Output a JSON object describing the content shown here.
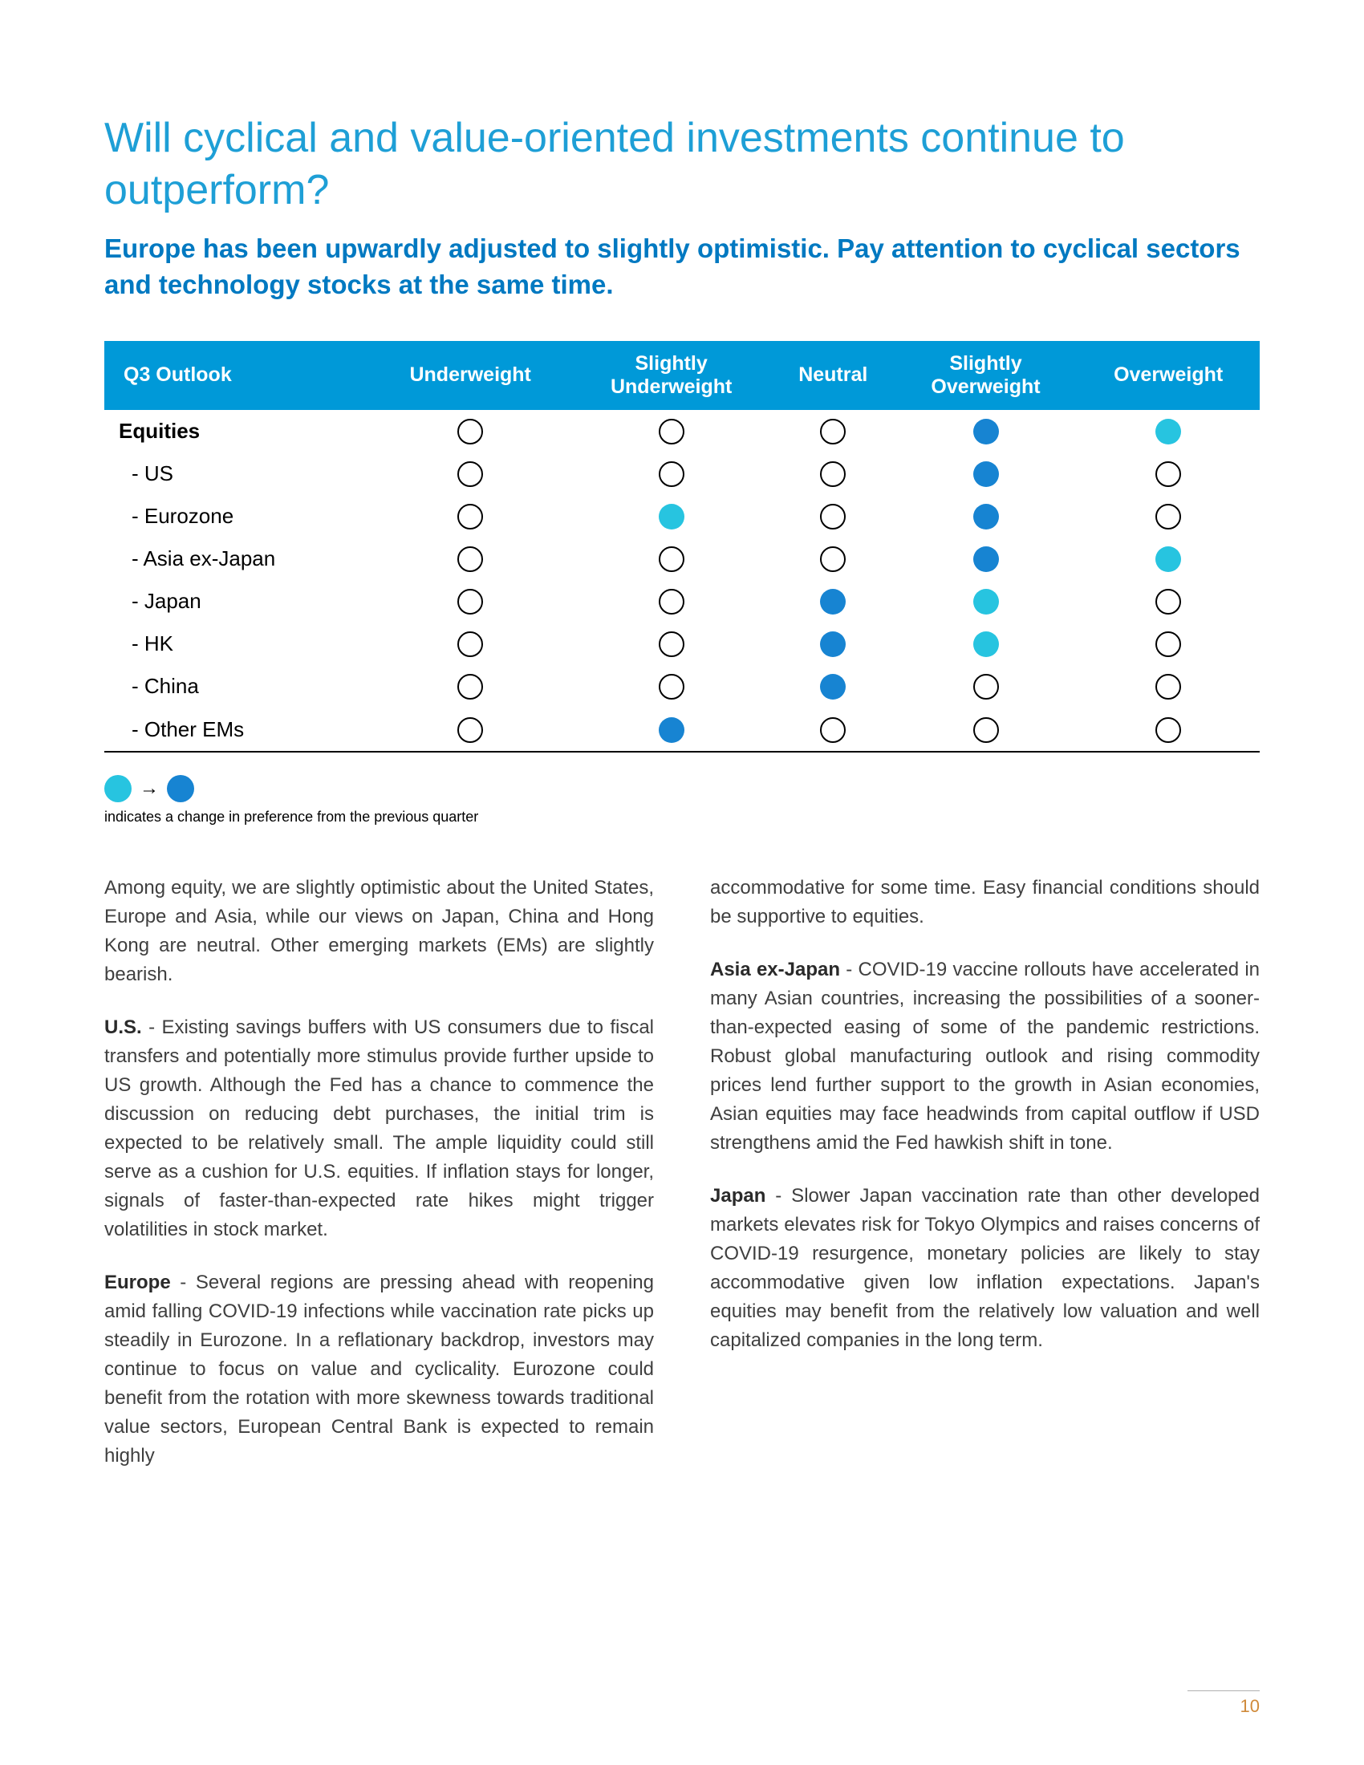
{
  "colors": {
    "title": "#1e9fd6",
    "subtitle": "#0079c1",
    "header_bg": "#0099d8",
    "header_text": "#ffffff",
    "dot_blue": "#1784d2",
    "dot_cyan": "#27c4e0",
    "body_text": "#3f3f3f",
    "page_num": "#d08a3a"
  },
  "title": "Will cyclical and value-oriented investments continue to outperform?",
  "subtitle": "Europe has been upwardly adjusted to slightly optimistic. Pay attention to cyclical sectors and technology stocks at the same time.",
  "table": {
    "headers": [
      "Q3 Outlook",
      "Underweight",
      "Slightly Underweight",
      "Neutral",
      "Slightly Overweight",
      "Overweight"
    ],
    "rows": [
      {
        "label": "Equities",
        "bold": true,
        "sub": false,
        "cells": [
          "empty",
          "empty",
          "empty",
          "blue",
          "cyan"
        ]
      },
      {
        "label": "- US",
        "bold": false,
        "sub": true,
        "cells": [
          "empty",
          "empty",
          "empty",
          "blue",
          "empty"
        ]
      },
      {
        "label": "- Eurozone",
        "bold": false,
        "sub": true,
        "cells": [
          "empty",
          "cyan",
          "empty",
          "blue",
          "empty"
        ]
      },
      {
        "label": "- Asia ex-Japan",
        "bold": false,
        "sub": true,
        "cells": [
          "empty",
          "empty",
          "empty",
          "blue",
          "cyan"
        ]
      },
      {
        "label": "- Japan",
        "bold": false,
        "sub": true,
        "cells": [
          "empty",
          "empty",
          "blue",
          "cyan",
          "empty"
        ]
      },
      {
        "label": "- HK",
        "bold": false,
        "sub": true,
        "cells": [
          "empty",
          "empty",
          "blue",
          "cyan",
          "empty"
        ]
      },
      {
        "label": "- China",
        "bold": false,
        "sub": true,
        "cells": [
          "empty",
          "empty",
          "blue",
          "empty",
          "empty"
        ]
      },
      {
        "label": "- Other EMs",
        "bold": false,
        "sub": true,
        "cells": [
          "empty",
          "blue",
          "empty",
          "empty",
          "empty"
        ]
      }
    ]
  },
  "legend": {
    "from_color": "cyan",
    "to_color": "blue",
    "arrow": "→",
    "text": "indicates a change in preference from the previous quarter"
  },
  "body": {
    "left": [
      {
        "html": "Among equity, we are slightly optimistic about the United States, Europe and Asia, while our views on Japan, China and Hong Kong are neutral. Other emerging markets (EMs) are slightly bearish."
      },
      {
        "html": "<b>U.S.</b> - Existing savings buffers with US consumers due to fiscal transfers and potentially more stimulus provide further upside to US growth. Although the Fed has a chance to commence the discussion on reducing debt purchases, the initial trim is expected to be relatively small. The ample liquidity could still serve as a cushion for U.S. equities. If inflation stays for longer, signals of faster-than-expected rate hikes might trigger volatilities in stock market."
      },
      {
        "html": "<b>Europe</b> - Several regions are pressing ahead with reopening amid falling COVID-19 infections while vaccination rate picks up steadily in Eurozone. In a reflationary backdrop, investors may continue to focus on value and cyclicality. Eurozone could benefit from the rotation with more skewness towards traditional value sectors, European Central Bank is expected to remain highly"
      }
    ],
    "right": [
      {
        "html": "accommodative for some time. Easy financial conditions should be supportive to equities."
      },
      {
        "html": "<b>Asia ex-Japan</b> - COVID-19 vaccine rollouts have accelerated in many Asian countries, increasing the possibilities of a sooner-than-expected easing of some of the pandemic restrictions. Robust global manufacturing outlook and rising commodity prices lend further support to the growth in Asian economies, Asian equities may face headwinds from capital outflow if USD strengthens amid the Fed hawkish shift in tone."
      },
      {
        "html": "<b>Japan</b> - Slower Japan vaccination rate than other developed markets elevates risk for Tokyo Olympics and raises concerns of COVID-19 resurgence, monetary policies are likely to stay accommodative given low inflation expectations. Japan's equities may benefit from the relatively low valuation and well capitalized companies in the long term."
      }
    ]
  },
  "page_number": "10"
}
